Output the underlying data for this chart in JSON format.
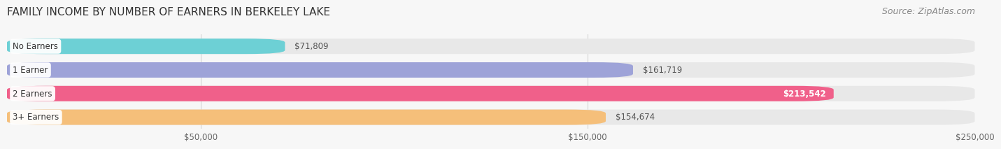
{
  "title": "FAMILY INCOME BY NUMBER OF EARNERS IN BERKELEY LAKE",
  "source": "Source: ZipAtlas.com",
  "categories": [
    "No Earners",
    "1 Earner",
    "2 Earners",
    "3+ Earners"
  ],
  "values": [
    71809,
    161719,
    213542,
    154674
  ],
  "bar_colors": [
    "#6dd0d5",
    "#9ea3d8",
    "#f0608a",
    "#f5bf7a"
  ],
  "value_label_inside": [
    false,
    false,
    true,
    false
  ],
  "xlim": [
    0,
    250000
  ],
  "xticks": [
    50000,
    150000,
    250000
  ],
  "xtick_labels": [
    "$50,000",
    "$150,000",
    "$250,000"
  ],
  "background_color": "#f7f7f7",
  "bar_bg_color": "#e8e8e8",
  "title_fontsize": 11,
  "source_fontsize": 9,
  "bar_height": 0.65,
  "figsize": [
    14.06,
    2.33
  ]
}
